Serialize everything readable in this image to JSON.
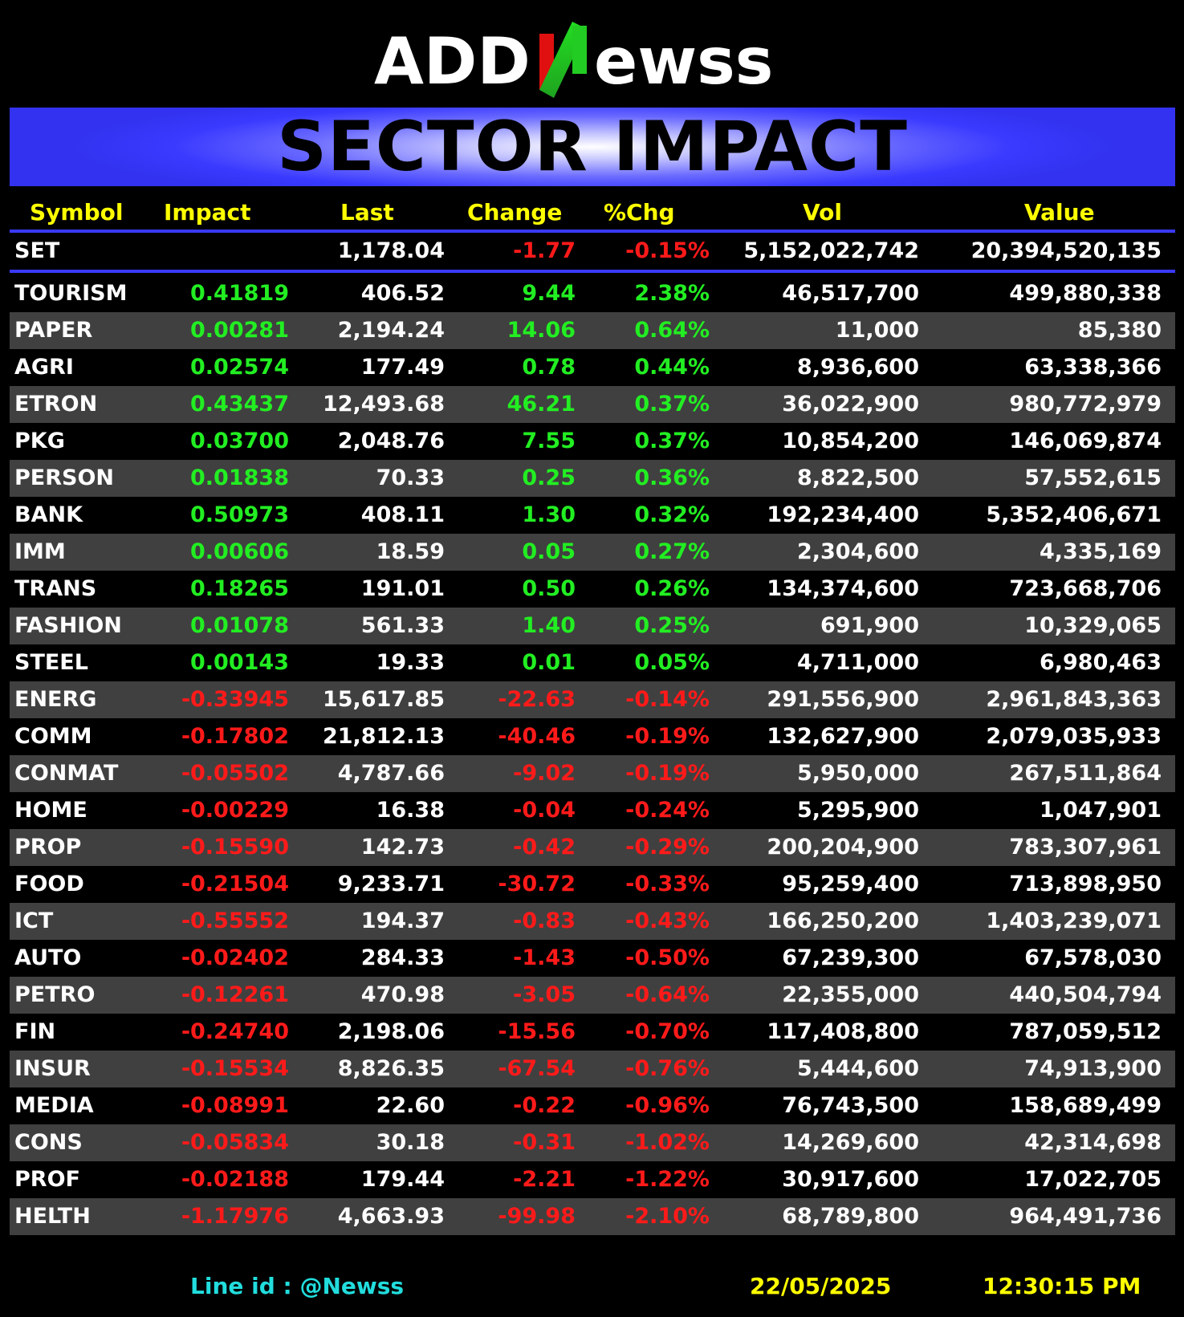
{
  "logo": {
    "text_left": "ADD",
    "text_mark": "N",
    "text_right": "ewss"
  },
  "banner": {
    "title": "SECTOR IMPACT"
  },
  "colors": {
    "positive": "#22ee22",
    "negative": "#ff1a1a",
    "header": "#ffff00",
    "accent": "#3a3aff"
  },
  "headers": {
    "symbol": "Symbol",
    "impact": "Impact",
    "last": "Last",
    "change": "Change",
    "pct": "%Chg",
    "vol": "Vol",
    "value": "Value"
  },
  "index": {
    "symbol": "SET",
    "impact": "",
    "last": "1,178.04",
    "change": "-1.77",
    "pct": "-0.15%",
    "vol": "5,152,022,742",
    "value": "20,394,520,135"
  },
  "rows": [
    {
      "symbol": "TOURISM",
      "impact": "0.41819",
      "last": "406.52",
      "change": "9.44",
      "pct": "2.38%",
      "vol": "46,517,700",
      "value": "499,880,338"
    },
    {
      "symbol": "PAPER",
      "impact": "0.00281",
      "last": "2,194.24",
      "change": "14.06",
      "pct": "0.64%",
      "vol": "11,000",
      "value": "85,380"
    },
    {
      "symbol": "AGRI",
      "impact": "0.02574",
      "last": "177.49",
      "change": "0.78",
      "pct": "0.44%",
      "vol": "8,936,600",
      "value": "63,338,366"
    },
    {
      "symbol": "ETRON",
      "impact": "0.43437",
      "last": "12,493.68",
      "change": "46.21",
      "pct": "0.37%",
      "vol": "36,022,900",
      "value": "980,772,979"
    },
    {
      "symbol": "PKG",
      "impact": "0.03700",
      "last": "2,048.76",
      "change": "7.55",
      "pct": "0.37%",
      "vol": "10,854,200",
      "value": "146,069,874"
    },
    {
      "symbol": "PERSON",
      "impact": "0.01838",
      "last": "70.33",
      "change": "0.25",
      "pct": "0.36%",
      "vol": "8,822,500",
      "value": "57,552,615"
    },
    {
      "symbol": "BANK",
      "impact": "0.50973",
      "last": "408.11",
      "change": "1.30",
      "pct": "0.32%",
      "vol": "192,234,400",
      "value": "5,352,406,671"
    },
    {
      "symbol": "IMM",
      "impact": "0.00606",
      "last": "18.59",
      "change": "0.05",
      "pct": "0.27%",
      "vol": "2,304,600",
      "value": "4,335,169"
    },
    {
      "symbol": "TRANS",
      "impact": "0.18265",
      "last": "191.01",
      "change": "0.50",
      "pct": "0.26%",
      "vol": "134,374,600",
      "value": "723,668,706"
    },
    {
      "symbol": "FASHION",
      "impact": "0.01078",
      "last": "561.33",
      "change": "1.40",
      "pct": "0.25%",
      "vol": "691,900",
      "value": "10,329,065"
    },
    {
      "symbol": "STEEL",
      "impact": "0.00143",
      "last": "19.33",
      "change": "0.01",
      "pct": "0.05%",
      "vol": "4,711,000",
      "value": "6,980,463"
    },
    {
      "symbol": "ENERG",
      "impact": "-0.33945",
      "last": "15,617.85",
      "change": "-22.63",
      "pct": "-0.14%",
      "vol": "291,556,900",
      "value": "2,961,843,363"
    },
    {
      "symbol": "COMM",
      "impact": "-0.17802",
      "last": "21,812.13",
      "change": "-40.46",
      "pct": "-0.19%",
      "vol": "132,627,900",
      "value": "2,079,035,933"
    },
    {
      "symbol": "CONMAT",
      "impact": "-0.05502",
      "last": "4,787.66",
      "change": "-9.02",
      "pct": "-0.19%",
      "vol": "5,950,000",
      "value": "267,511,864"
    },
    {
      "symbol": "HOME",
      "impact": "-0.00229",
      "last": "16.38",
      "change": "-0.04",
      "pct": "-0.24%",
      "vol": "5,295,900",
      "value": "1,047,901"
    },
    {
      "symbol": "PROP",
      "impact": "-0.15590",
      "last": "142.73",
      "change": "-0.42",
      "pct": "-0.29%",
      "vol": "200,204,900",
      "value": "783,307,961"
    },
    {
      "symbol": "FOOD",
      "impact": "-0.21504",
      "last": "9,233.71",
      "change": "-30.72",
      "pct": "-0.33%",
      "vol": "95,259,400",
      "value": "713,898,950"
    },
    {
      "symbol": "ICT",
      "impact": "-0.55552",
      "last": "194.37",
      "change": "-0.83",
      "pct": "-0.43%",
      "vol": "166,250,200",
      "value": "1,403,239,071"
    },
    {
      "symbol": "AUTO",
      "impact": "-0.02402",
      "last": "284.33",
      "change": "-1.43",
      "pct": "-0.50%",
      "vol": "67,239,300",
      "value": "67,578,030"
    },
    {
      "symbol": "PETRO",
      "impact": "-0.12261",
      "last": "470.98",
      "change": "-3.05",
      "pct": "-0.64%",
      "vol": "22,355,000",
      "value": "440,504,794"
    },
    {
      "symbol": "FIN",
      "impact": "-0.24740",
      "last": "2,198.06",
      "change": "-15.56",
      "pct": "-0.70%",
      "vol": "117,408,800",
      "value": "787,059,512"
    },
    {
      "symbol": "INSUR",
      "impact": "-0.15534",
      "last": "8,826.35",
      "change": "-67.54",
      "pct": "-0.76%",
      "vol": "5,444,600",
      "value": "74,913,900"
    },
    {
      "symbol": "MEDIA",
      "impact": "-0.08991",
      "last": "22.60",
      "change": "-0.22",
      "pct": "-0.96%",
      "vol": "76,743,500",
      "value": "158,689,499"
    },
    {
      "symbol": "CONS",
      "impact": "-0.05834",
      "last": "30.18",
      "change": "-0.31",
      "pct": "-1.02%",
      "vol": "14,269,600",
      "value": "42,314,698"
    },
    {
      "symbol": "PROF",
      "impact": "-0.02188",
      "last": "179.44",
      "change": "-2.21",
      "pct": "-1.22%",
      "vol": "30,917,600",
      "value": "17,022,705"
    },
    {
      "symbol": "HELTH",
      "impact": "-1.17976",
      "last": "4,663.93",
      "change": "-99.98",
      "pct": "-2.10%",
      "vol": "68,789,800",
      "value": "964,491,736"
    }
  ],
  "footer": {
    "line_id": "Line id  : @Newss",
    "date": "22/05/2025",
    "time": "12:30:15 PM"
  }
}
